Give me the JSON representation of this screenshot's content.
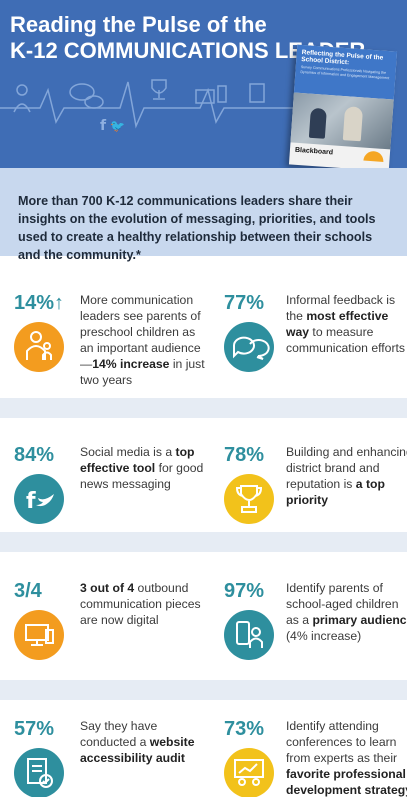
{
  "header": {
    "title_line1": "Reading the Pulse of the",
    "title_line2": "K-12 COMMUNICATIONS LEADER"
  },
  "book": {
    "title": "Reflecting the Pulse of the School District:",
    "subtitle": "Survey Communications Professionals Navigating the Dynamics of Information and Engagement Management",
    "brand": "Blackboard"
  },
  "intro": {
    "text": "More than 700 K-12 communications leaders share their insights on the evolution of messaging, priorities, and tools used to create a healthy relationship between their schools and the community.*"
  },
  "stats": [
    {
      "value": "14%↑",
      "pre": "More communication leaders see parents of preschool children as an important audience—",
      "bold": "14% increase",
      "post": " in just two years",
      "icon": "parent-child-icon"
    },
    {
      "value": "77%",
      "pre": "Informal feedback is the ",
      "bold": "most effective way",
      "post": " to measure communication efforts",
      "icon": "speech-bubbles-icon"
    },
    {
      "value": "84%",
      "pre": "Social media is a ",
      "bold": "top effective tool",
      "post": " for good news messaging",
      "icon": "social-media-icon"
    },
    {
      "value": "78%",
      "pre": "Building and enhancing district brand and reputation is ",
      "bold": "a top priority",
      "post": "",
      "icon": "trophy-icon"
    },
    {
      "value": "3/4",
      "pre": "",
      "bold": "3 out of 4",
      "post": " outbound communication pieces are now digital",
      "icon": "devices-icon"
    },
    {
      "value": "97%",
      "pre": " Identify parents of school-aged children as a ",
      "bold": "primary audience",
      "post": " (4% increase)",
      "icon": "parent-phone-icon"
    },
    {
      "value": "57%",
      "pre": "Say they have conducted a ",
      "bold": "website accessibility audit",
      "post": "",
      "icon": "checklist-icon"
    },
    {
      "value": "73%",
      "pre": "Identify attending conferences to learn from experts as their ",
      "bold": "favorite professional development strategy",
      "post": "",
      "icon": "presentation-icon"
    }
  ],
  "colors": {
    "header_bg": "#3f6db5",
    "intro_bg": "#c8d8ee",
    "stat_teal": "#2e8f9e",
    "orange": "#f39c1f",
    "yellow": "#f2c21b"
  }
}
